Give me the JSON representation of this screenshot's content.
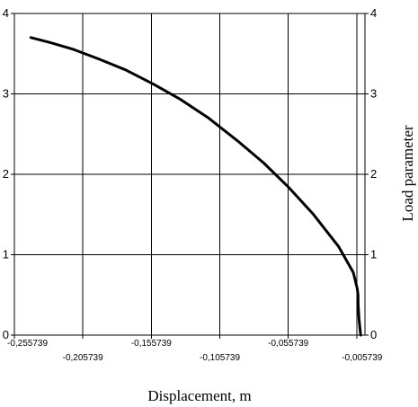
{
  "chart_data": {
    "type": "line",
    "title": "",
    "xlabel": "Displacement, m",
    "ylabel_right": "Load parameter",
    "xlim": [
      -0.255739,
      0.000261
    ],
    "ylim": [
      0,
      4
    ],
    "grid": true,
    "x_ticks": [
      -0.255739,
      -0.205739,
      -0.155739,
      -0.105739,
      -0.055739,
      -0.005739
    ],
    "x_tick_labels": [
      "-0,255739",
      "-0,205739",
      "-0,155739",
      "-0,105739",
      "-0,055739",
      "-0,005739"
    ],
    "y_ticks": [
      0,
      1,
      2,
      3,
      4
    ],
    "y_tick_labels": [
      "0",
      "1",
      "2",
      "3",
      "4"
    ],
    "series": [
      {
        "x": [
          -0.2437,
          -0.23,
          -0.2137,
          -0.195,
          -0.1747,
          -0.154,
          -0.1352,
          -0.114,
          -0.0931,
          -0.0736,
          -0.0556,
          -0.0373,
          -0.0189,
          -0.0083,
          -0.0054,
          -0.0048,
          -0.0047,
          -0.0041,
          -0.0029
        ],
        "y": [
          3.7,
          3.64,
          3.56,
          3.44,
          3.3,
          3.12,
          2.94,
          2.7,
          2.42,
          2.14,
          1.84,
          1.5,
          1.1,
          0.78,
          0.58,
          0.5,
          0.38,
          0.2,
          0.0
        ],
        "color": "#000000"
      }
    ]
  }
}
